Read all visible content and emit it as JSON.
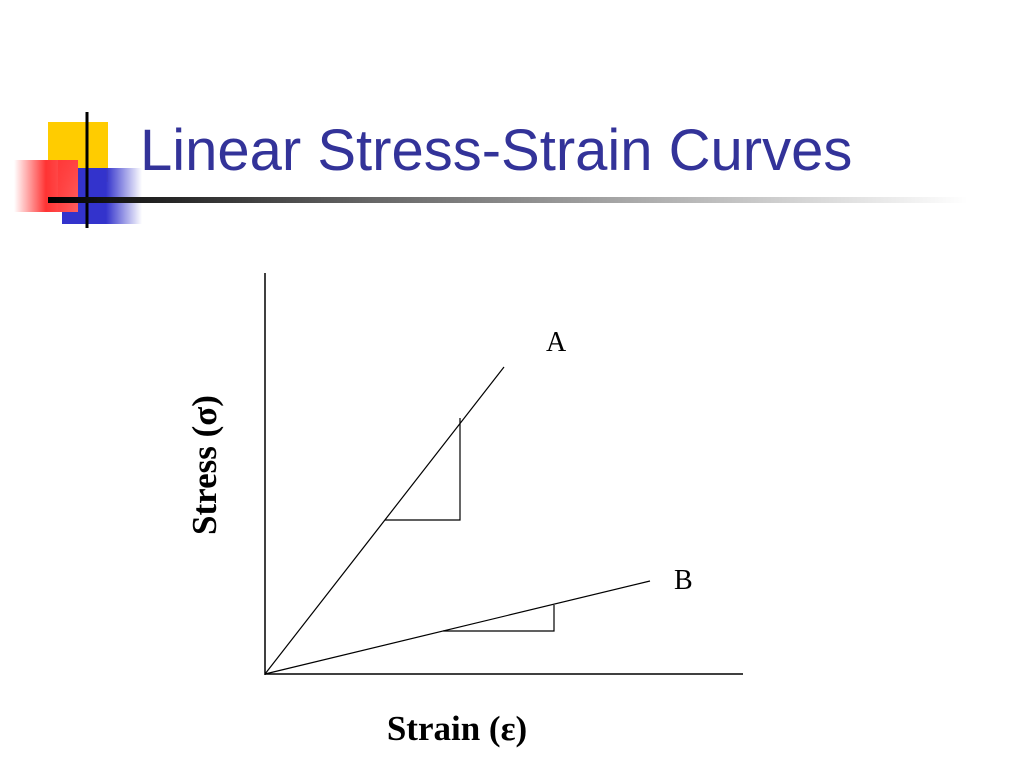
{
  "slide": {
    "title": "Linear Stress-Strain Curves",
    "accent_colors": {
      "title": "#333399",
      "yellow_square": "#FFCC00",
      "red_square": "#FF3333",
      "blue_square": "#3333CC"
    }
  },
  "diagram": {
    "x_axis_label": "Strain (ε)",
    "y_axis_label": "Stress (σ)",
    "lines": [
      {
        "label": "A",
        "description": "steep linear curve with slope triangle"
      },
      {
        "label": "B",
        "description": "shallow linear curve with slope triangle"
      }
    ]
  }
}
